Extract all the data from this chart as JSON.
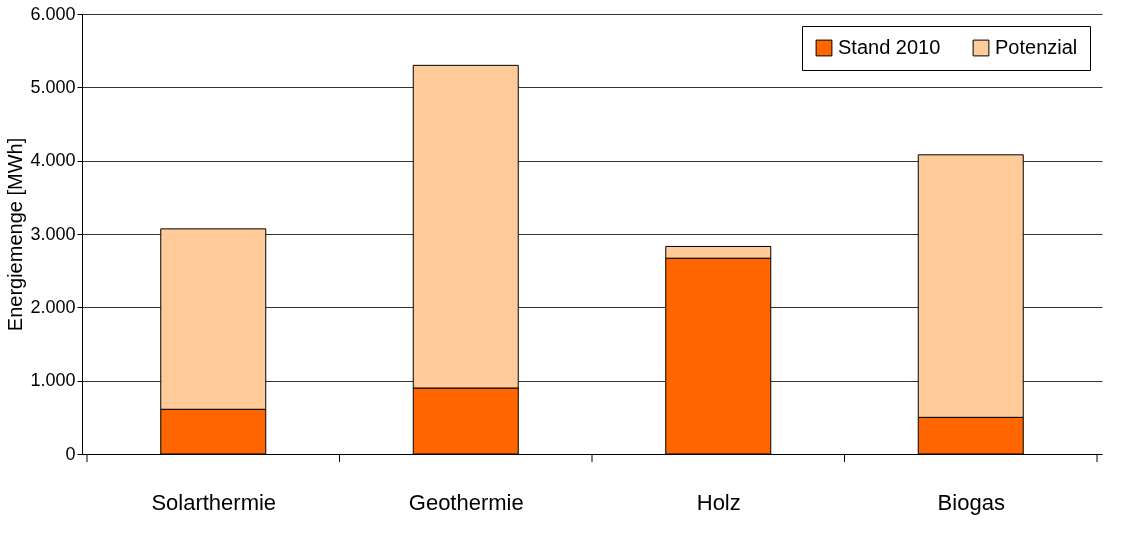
{
  "chart_data": {
    "type": "bar",
    "stacked": true,
    "ylabel": "Energiemenge [MWh]",
    "categories": [
      "Solarthermie",
      "Geothermie",
      "Holz",
      "Biogas"
    ],
    "series": [
      {
        "name": "Stand 2010",
        "color": "#ff6600",
        "values": [
          610,
          900,
          2670,
          500
        ]
      },
      {
        "name": "Potenzial",
        "color": "#ffcc99",
        "values": [
          2460,
          4400,
          160,
          3580
        ]
      }
    ],
    "ylim": [
      0,
      6000
    ],
    "yticks": [
      {
        "value": 0,
        "label": "0"
      },
      {
        "value": 1000,
        "label": "1.000"
      },
      {
        "value": 2000,
        "label": "2.000"
      },
      {
        "value": 3000,
        "label": "3.000"
      },
      {
        "value": 4000,
        "label": "4.000"
      },
      {
        "value": 5000,
        "label": "5.000"
      },
      {
        "value": 6000,
        "label": "6.000"
      }
    ],
    "grid": "y",
    "legend": "top right"
  }
}
